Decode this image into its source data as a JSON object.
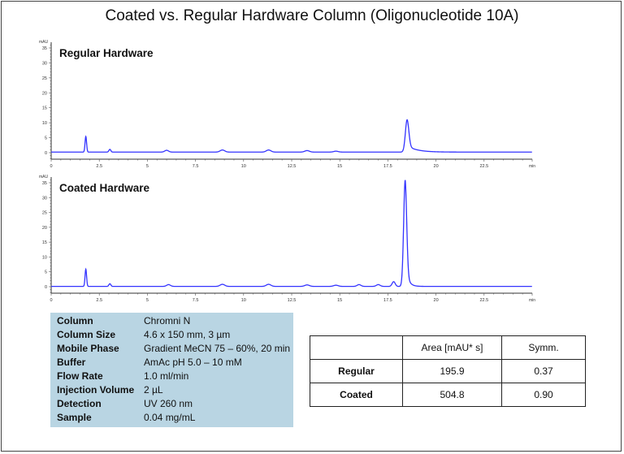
{
  "title": "Coated vs. Regular Hardware Column (Oligonucleotide 10A)",
  "chart_data": [
    {
      "type": "line",
      "title": "Regular Hardware",
      "ylabel": "mAU",
      "xlabel": "min",
      "xlim": [
        0,
        25
      ],
      "ylim": [
        -2,
        36
      ],
      "xticks": [
        "0",
        "2.5",
        "5",
        "7.5",
        "10",
        "12.5",
        "15",
        "17.5",
        "20",
        "22.5"
      ],
      "yticks": [
        "0",
        "5",
        "10",
        "15",
        "20",
        "25",
        "30",
        "35"
      ],
      "color": "#3333ff",
      "baseline": 0.2,
      "peaks": [
        {
          "rt": 1.8,
          "height": 5.2,
          "width": 0.04
        },
        {
          "rt": 3.05,
          "height": 0.9,
          "width": 0.05
        },
        {
          "rt": 6.0,
          "height": 0.6,
          "width": 0.1
        },
        {
          "rt": 8.9,
          "height": 0.7,
          "width": 0.12
        },
        {
          "rt": 11.3,
          "height": 0.7,
          "width": 0.12
        },
        {
          "rt": 13.3,
          "height": 0.5,
          "width": 0.12
        },
        {
          "rt": 14.8,
          "height": 0.3,
          "width": 0.12
        },
        {
          "rt": 18.5,
          "height": 10.8,
          "width": 0.09,
          "tail": 0.5
        }
      ]
    },
    {
      "type": "line",
      "title": "Coated Hardware",
      "ylabel": "mAU",
      "xlabel": "min",
      "xlim": [
        0,
        25
      ],
      "ylim": [
        -2,
        36
      ],
      "xticks": [
        "0",
        "2.5",
        "5",
        "7.5",
        "10",
        "12.5",
        "15",
        "17.5",
        "20",
        "22.5"
      ],
      "yticks": [
        "0",
        "5",
        "10",
        "15",
        "20",
        "25",
        "30",
        "35"
      ],
      "color": "#3333ff",
      "baseline": 0.1,
      "peaks": [
        {
          "rt": 1.8,
          "height": 5.8,
          "width": 0.04
        },
        {
          "rt": 3.05,
          "height": 0.9,
          "width": 0.05
        },
        {
          "rt": 6.1,
          "height": 0.6,
          "width": 0.1
        },
        {
          "rt": 8.9,
          "height": 0.7,
          "width": 0.12
        },
        {
          "rt": 11.3,
          "height": 0.7,
          "width": 0.12
        },
        {
          "rt": 13.3,
          "height": 0.5,
          "width": 0.12
        },
        {
          "rt": 14.8,
          "height": 0.4,
          "width": 0.12
        },
        {
          "rt": 16.0,
          "height": 0.6,
          "width": 0.1
        },
        {
          "rt": 17.0,
          "height": 0.6,
          "width": 0.1
        },
        {
          "rt": 17.8,
          "height": 1.6,
          "width": 0.08
        },
        {
          "rt": 18.4,
          "height": 35.8,
          "width": 0.08,
          "tail": 0.15
        }
      ]
    }
  ],
  "conditions": [
    {
      "label": "Column",
      "value": "Chromni N"
    },
    {
      "label": "Column Size",
      "value": "4.6 x 150 mm, 3 µm"
    },
    {
      "label": "Mobile Phase",
      "value": "Gradient MeCN 75 – 60%, 20 min"
    },
    {
      "label": "Buffer",
      "value": "AmAc pH 5.0 – 10 mM"
    },
    {
      "label": "Flow Rate",
      "value": "1.0 ml/min"
    },
    {
      "label": "Injection Volume",
      "value": "2 µL"
    },
    {
      "label": "Detection",
      "value": "UV 260 nm"
    },
    {
      "label": "Sample",
      "value": "0.04 mg/mL"
    }
  ],
  "results": {
    "headers": [
      "",
      "Area [mAU* s]",
      "Symm."
    ],
    "rows": [
      {
        "name": "Regular",
        "area": "195.9",
        "symm": "0.37"
      },
      {
        "name": "Coated",
        "area": "504.8",
        "symm": "0.90"
      }
    ]
  }
}
